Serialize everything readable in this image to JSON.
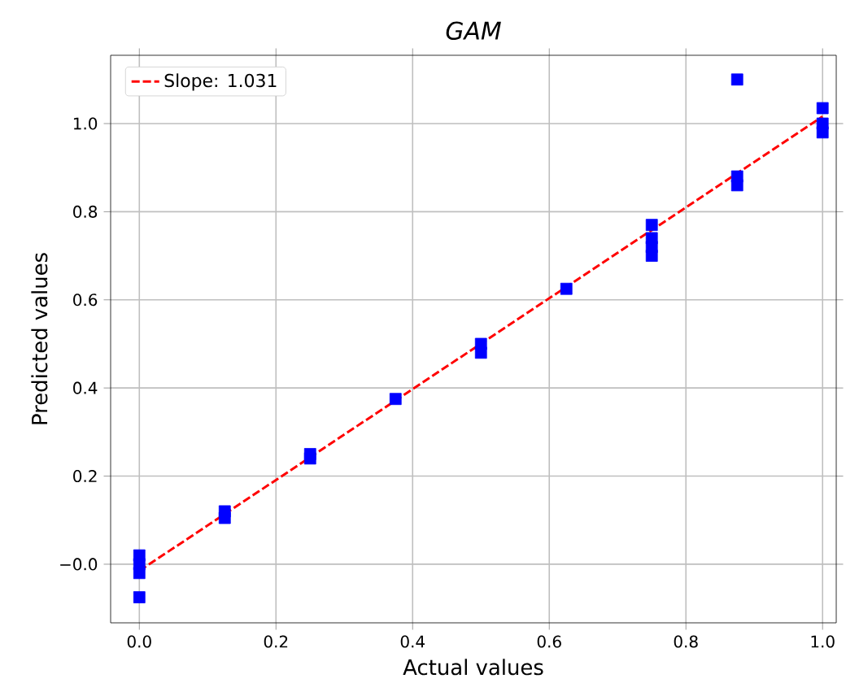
{
  "chart_data": {
    "type": "scatter",
    "title": "GAM",
    "xlabel": "Actual values",
    "ylabel": "Predicted values",
    "series": [
      {
        "color": "#0000ff",
        "marker": "square",
        "x": [
          0,
          0,
          0,
          0,
          0.125,
          0.125,
          0.25,
          0.25,
          0.375,
          0.5,
          0.5,
          0.625,
          0.75,
          0.75,
          0.75,
          0.75,
          0.875,
          0.875,
          0.875,
          1,
          1,
          1
        ],
        "values": [
          0.02,
          0,
          -0.02,
          -0.075,
          0.12,
          0.105,
          0.25,
          0.24,
          0.375,
          0.5,
          0.48,
          0.625,
          0.77,
          0.74,
          0.72,
          0.7,
          1.1,
          0.88,
          0.86,
          1.035,
          1,
          0.98
        ]
      },
      {
        "type": "line",
        "name": "Slope: 1.031",
        "color": "#ff0000",
        "line_style": "dashed",
        "marker": "none",
        "x": [
          0,
          1
        ],
        "values": [
          -0.015,
          1.016
        ]
      }
    ],
    "xlim": [
      -0.042,
      1.02
    ],
    "ylim": [
      -0.133,
      1.155
    ],
    "xticks": [
      {
        "value": 0,
        "label": "0.0"
      },
      {
        "value": 0.2,
        "label": "0.2"
      },
      {
        "value": 0.4,
        "label": "0.4"
      },
      {
        "value": 0.6,
        "label": "0.6"
      },
      {
        "value": 0.8,
        "label": "0.8"
      },
      {
        "value": 1,
        "label": "1.0"
      }
    ],
    "yticks": [
      {
        "value": 0,
        "label": "−0.0"
      },
      {
        "value": 0.2,
        "label": "0.2"
      },
      {
        "value": 0.4,
        "label": "0.4"
      },
      {
        "value": 0.6,
        "label": "0.6"
      },
      {
        "value": 0.8,
        "label": "0.8"
      },
      {
        "value": 1,
        "label": "1.0"
      }
    ],
    "grid": true,
    "legend": "top left"
  }
}
